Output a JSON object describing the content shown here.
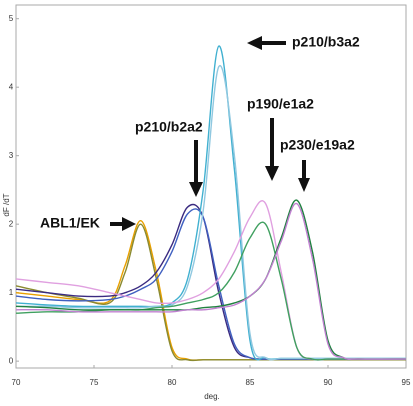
{
  "chart_data": {
    "type": "line",
    "x_label": "deg.",
    "y_label": "dF /dT",
    "xlim": [
      70,
      95
    ],
    "ylim": [
      -0.1,
      5.2
    ],
    "xticks": [
      70,
      75,
      80,
      85,
      90,
      95
    ],
    "yticks": [
      0,
      1,
      2,
      3,
      4,
      5
    ],
    "x": [
      70,
      72,
      74,
      76,
      77,
      78,
      79,
      80,
      81,
      82,
      83,
      84,
      85,
      86,
      87,
      88,
      89,
      90,
      91,
      92,
      95
    ],
    "series": [
      {
        "color": "#e8a000",
        "values": [
          1.0,
          0.95,
          0.9,
          0.88,
          1.4,
          2.05,
          1.3,
          0.2,
          0.03,
          0.02,
          0.02,
          0.02,
          0.02,
          0.02,
          0.02,
          0.02,
          0.02,
          0.02,
          0.02,
          0.02,
          0.02
        ]
      },
      {
        "color": "#8a8a30",
        "values": [
          1.1,
          1.0,
          0.92,
          0.85,
          1.3,
          2.0,
          1.2,
          0.15,
          0.02,
          0.02,
          0.02,
          0.02,
          0.02,
          0.02,
          0.02,
          0.02,
          0.02,
          0.02,
          0.02,
          0.02,
          0.02
        ]
      },
      {
        "color": "#3a2a80",
        "values": [
          1.05,
          1.0,
          0.95,
          0.95,
          1.0,
          1.1,
          1.3,
          1.7,
          2.25,
          2.1,
          1.0,
          0.2,
          0.05,
          0.03,
          0.03,
          0.03,
          0.03,
          0.03,
          0.03,
          0.03,
          0.03
        ]
      },
      {
        "color": "#4060c0",
        "values": [
          0.95,
          0.9,
          0.88,
          0.9,
          0.95,
          1.05,
          1.2,
          1.6,
          2.15,
          2.1,
          1.1,
          0.25,
          0.05,
          0.03,
          0.03,
          0.03,
          0.03,
          0.03,
          0.03,
          0.03,
          0.03
        ]
      },
      {
        "color": "#40b0d0",
        "values": [
          0.85,
          0.82,
          0.8,
          0.8,
          0.8,
          0.8,
          0.8,
          0.85,
          1.2,
          2.5,
          4.6,
          2.8,
          0.3,
          0.05,
          0.04,
          0.04,
          0.04,
          0.04,
          0.04,
          0.04,
          0.04
        ]
      },
      {
        "color": "#90c8e0",
        "values": [
          0.8,
          0.8,
          0.78,
          0.78,
          0.78,
          0.78,
          0.8,
          0.82,
          1.1,
          2.2,
          4.3,
          3.0,
          0.4,
          0.05,
          0.04,
          0.04,
          0.04,
          0.04,
          0.04,
          0.04,
          0.04
        ]
      },
      {
        "color": "#e0a0e0",
        "values": [
          1.2,
          1.15,
          1.1,
          1.0,
          0.95,
          0.9,
          0.85,
          0.85,
          0.9,
          1.0,
          1.2,
          1.6,
          2.1,
          2.3,
          1.3,
          0.2,
          0.03,
          0.03,
          0.03,
          0.03,
          0.03
        ]
      },
      {
        "color": "#40a060",
        "values": [
          0.7,
          0.72,
          0.72,
          0.75,
          0.75,
          0.75,
          0.78,
          0.8,
          0.85,
          0.9,
          1.0,
          1.3,
          1.8,
          2.0,
          1.2,
          0.2,
          0.03,
          0.03,
          0.03,
          0.03,
          0.03
        ]
      },
      {
        "color": "#208040",
        "values": [
          0.8,
          0.78,
          0.75,
          0.75,
          0.75,
          0.75,
          0.75,
          0.75,
          0.75,
          0.78,
          0.8,
          0.85,
          0.95,
          1.2,
          1.8,
          2.35,
          1.6,
          0.3,
          0.05,
          0.03,
          0.03
        ]
      },
      {
        "color": "#c080d0",
        "values": [
          0.75,
          0.75,
          0.72,
          0.72,
          0.72,
          0.72,
          0.72,
          0.72,
          0.75,
          0.75,
          0.78,
          0.82,
          0.95,
          1.2,
          1.75,
          2.3,
          1.5,
          0.25,
          0.05,
          0.03,
          0.03
        ]
      }
    ],
    "annotations": [
      "ABL1/EK",
      "p210/b2a2",
      "p210/b3a2",
      "p190/e1a2",
      "p230/e19a2"
    ]
  }
}
